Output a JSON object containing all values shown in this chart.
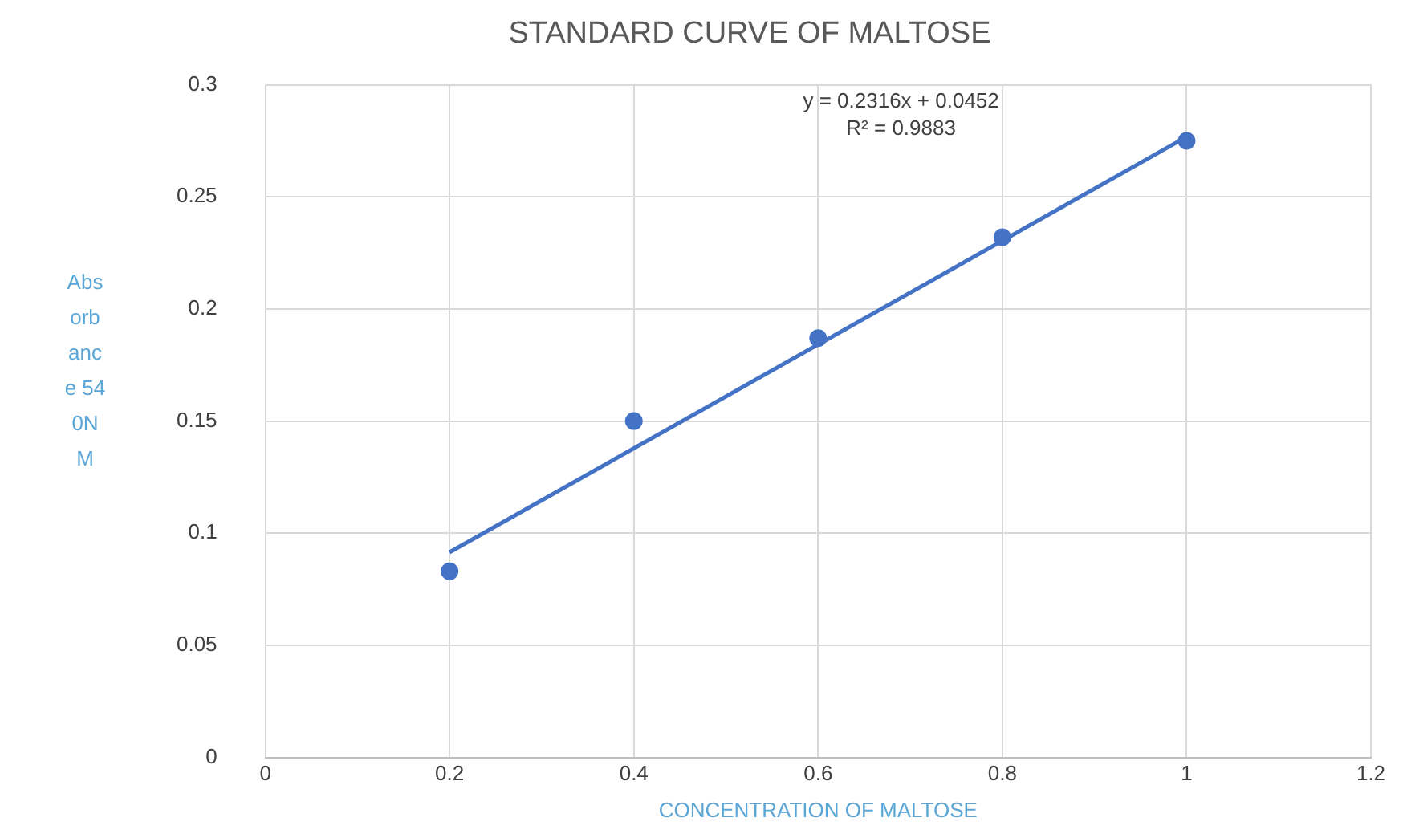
{
  "chart_data": {
    "type": "scatter",
    "title": "STANDARD CURVE OF MALTOSE",
    "xlabel": "CONCENTRATION OF MALTOSE",
    "ylabel": "Absorbance 540NM",
    "xlim": [
      0,
      1.2
    ],
    "xticks": [
      0,
      0.2,
      0.4,
      0.6,
      0.8,
      1,
      1.2
    ],
    "ylim": [
      0,
      0.3
    ],
    "yticks": [
      0,
      0.05,
      0.1,
      0.15,
      0.2,
      0.25,
      0.3
    ],
    "grid": true,
    "legend": false,
    "annotations": [
      "y = 0.2316x + 0.0452",
      "R² = 0.9883"
    ],
    "series": [
      {
        "color": "#4472c4",
        "marker": "circle",
        "x": [
          0.2,
          0.4,
          0.6,
          0.8,
          1
        ],
        "values": [
          0.083,
          0.15,
          0.187,
          0.232,
          0.275
        ]
      },
      {
        "type": "line",
        "color": "#4472c4",
        "marker": "none",
        "x": [
          0.2,
          1
        ],
        "values": [
          0.0915,
          0.2768
        ]
      }
    ]
  }
}
